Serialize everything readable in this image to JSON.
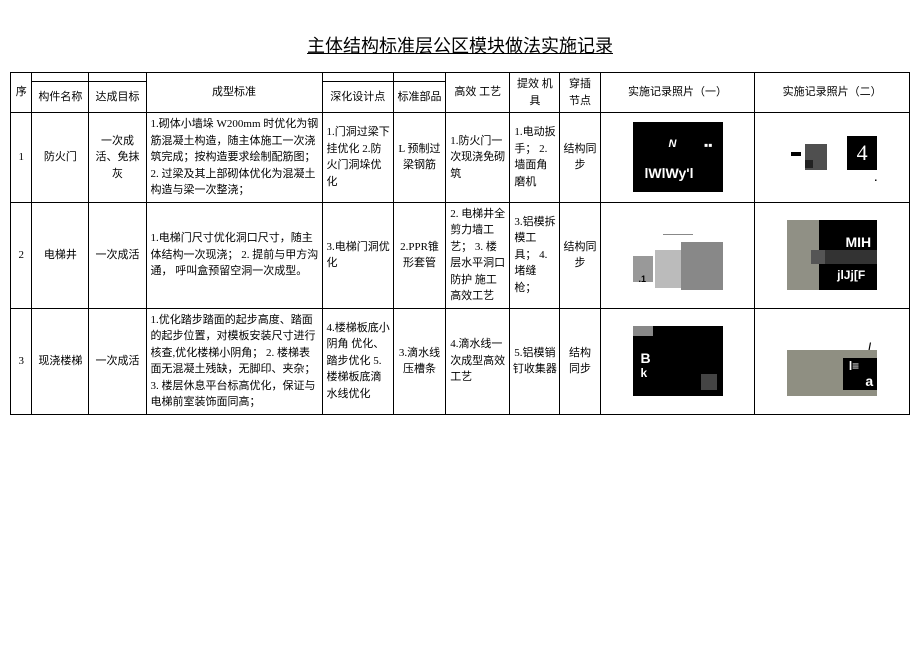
{
  "title": "主体结构标准层公区模块做法实施记录",
  "headers": {
    "idx": "序",
    "name": "构件名称",
    "goal": "达成目标",
    "std": "成型标准",
    "design": "深化设计点",
    "parts": "标准部品",
    "craft": "高效\n工艺",
    "tools": "提效\n机具",
    "ins": "穿插\n节点",
    "photo1": "实施记录照片（一）",
    "photo2": "实施记录照片（二）"
  },
  "rows": [
    {
      "idx": "1",
      "name": "防火门",
      "goal": "一次成活、免抹灰",
      "std": "1.砌体小墙垛 W200mm 时优化为钢筋混凝土构造，随主体施工一次浇筑完成；按构造要求绘制配筋图；\n2. 过梁及其上部砌体优化为混凝土构造与梁一次整浇；",
      "design": "1.门洞过梁下挂优化\n2.防火门洞垛优化",
      "parts": "L 预制过梁钢筋",
      "craft": "1.防火门一次现浇免砌筑",
      "tools": "1.电动扳手；\n2.墙面角磨机",
      "ins": "结构同步"
    },
    {
      "idx": "2",
      "name": "电梯井",
      "goal": "一次成活",
      "std": "1.电梯门尺寸优化洞口尺寸，随主体结构一次现浇；\n2. 提前与甲方沟通， 呼叫盒预留空洞一次成型。",
      "design": "3.电梯门洞优化",
      "parts": "2.PPR锥形套管",
      "craft": "2. 电梯井全剪力墙工艺；\n3. 楼层水平洞口防护\n施工高效工艺",
      "tools": "3.铝模拆模工具；\n4. 堵缝枪；",
      "ins": "结构同步"
    },
    {
      "idx": "3",
      "name": "现浇楼梯",
      "goal": "一次成活",
      "std": "1.优化踏步踏面的起步高度、踏面的起步位置，对模板安装尺寸进行核查,优化楼梯小阴角；\n2. 楼梯表面无混凝土残缺，无脚印、夹杂；\n3. 楼层休息平台标高优化，保证与电梯前室装饰面同高；",
      "design": "4.楼梯板底小阴角\n优化、踏步优化\n5.楼梯板底滴水线优化",
      "parts": "3.滴水线压槽条",
      "craft": "4.滴水线一次成型高效工艺",
      "tools": "5.铝模销钉收集器",
      "ins": "结构\n同步"
    }
  ]
}
